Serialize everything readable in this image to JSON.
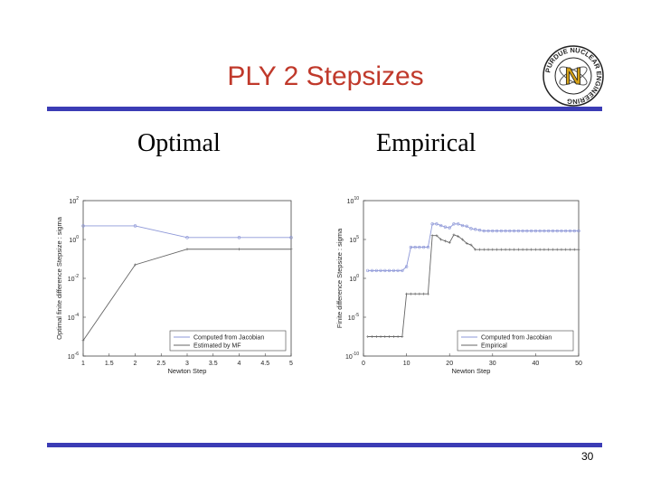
{
  "slide": {
    "title": "PLY 2 Stepsizes",
    "subtitle_left": "Optimal",
    "subtitle_right": "Empirical",
    "page_number": "30",
    "logo_text": "PURDUE NUCLEAR ENGINEERING",
    "logo_letter": "N",
    "colors": {
      "title": "#c0392b",
      "rule": "#3b3cb5",
      "series_blue": "#8e98d8",
      "series_gray": "#666666"
    }
  },
  "chart_data": [
    {
      "type": "line",
      "title": "",
      "xlabel": "Newton Step",
      "ylabel": "Optimal finite difference Stepsize : sigma",
      "xlim": [
        1,
        5
      ],
      "ylim_log10": [
        -6,
        2
      ],
      "yscale": "log",
      "x_ticks": [
        "1",
        "1.5",
        "2",
        "2.5",
        "3",
        "3.5",
        "4",
        "4.5",
        "5"
      ],
      "y_ticks": [
        {
          "base": "10",
          "exp": "2"
        },
        {
          "base": "10",
          "exp": "0"
        },
        {
          "base": "10",
          "exp": "-2"
        },
        {
          "base": "10",
          "exp": "-4"
        },
        {
          "base": "10",
          "exp": "-6"
        }
      ],
      "legend_position": "bottom-right",
      "series": [
        {
          "name": "Computed from Jacobian",
          "color": "#8e98d8",
          "x": [
            1,
            2,
            3,
            4,
            5
          ],
          "y_log10": [
            0.7,
            0.7,
            0.1,
            0.1,
            0.1
          ]
        },
        {
          "name": "Estimated by MF",
          "color": "#666666",
          "x": [
            1,
            2,
            3,
            4,
            5
          ],
          "y_log10": [
            -5.2,
            -1.3,
            -0.5,
            -0.5,
            -0.5
          ]
        }
      ]
    },
    {
      "type": "line",
      "title": "",
      "xlabel": "Newton Step",
      "ylabel": "Finite difference Stepsize : sigma",
      "xlim": [
        0,
        50
      ],
      "ylim_log10": [
        -10,
        10
      ],
      "yscale": "log",
      "x_ticks": [
        "0",
        "10",
        "20",
        "30",
        "40",
        "50"
      ],
      "y_ticks": [
        {
          "base": "10",
          "exp": "10"
        },
        {
          "base": "10",
          "exp": "5"
        },
        {
          "base": "10",
          "exp": "0"
        },
        {
          "base": "10",
          "exp": "-5"
        },
        {
          "base": "10",
          "exp": "-10"
        }
      ],
      "legend_position": "bottom-right",
      "series": [
        {
          "name": "Computed from Jacobian",
          "color": "#8e98d8",
          "x": [
            1,
            2,
            3,
            4,
            5,
            6,
            7,
            8,
            9,
            10,
            11,
            12,
            13,
            14,
            15,
            16,
            17,
            18,
            19,
            20,
            21,
            22,
            23,
            24,
            25,
            26,
            27,
            28,
            29,
            30,
            31,
            32,
            33,
            34,
            35,
            36,
            37,
            38,
            39,
            40,
            41,
            42,
            43,
            44,
            45,
            46,
            47,
            48,
            49,
            50
          ],
          "y_log10": [
            1.0,
            1.0,
            1.0,
            1.0,
            1.0,
            1.0,
            1.0,
            1.0,
            1.0,
            1.5,
            4.0,
            4.0,
            4.0,
            4.0,
            4.0,
            7.0,
            7.0,
            6.8,
            6.6,
            6.5,
            7.0,
            7.0,
            6.8,
            6.7,
            6.4,
            6.3,
            6.2,
            6.1,
            6.1,
            6.1,
            6.1,
            6.1,
            6.1,
            6.1,
            6.1,
            6.1,
            6.1,
            6.1,
            6.1,
            6.1,
            6.1,
            6.1,
            6.1,
            6.1,
            6.1,
            6.1,
            6.1,
            6.1,
            6.1,
            6.1
          ]
        },
        {
          "name": "Empirical",
          "color": "#666666",
          "x": [
            1,
            2,
            3,
            4,
            5,
            6,
            7,
            8,
            9,
            10,
            11,
            12,
            13,
            14,
            15,
            16,
            17,
            18,
            19,
            20,
            21,
            22,
            23,
            24,
            25,
            26,
            27,
            28,
            29,
            30,
            31,
            32,
            33,
            34,
            35,
            36,
            37,
            38,
            39,
            40,
            41,
            42,
            43,
            44,
            45,
            46,
            47,
            48,
            49,
            50
          ],
          "y_log10": [
            -7.5,
            -7.5,
            -7.5,
            -7.5,
            -7.5,
            -7.5,
            -7.5,
            -7.5,
            -7.5,
            -2.0,
            -2.0,
            -2.0,
            -2.0,
            -2.0,
            -2.0,
            5.5,
            5.5,
            5.0,
            4.8,
            4.6,
            5.6,
            5.4,
            5.0,
            4.5,
            4.3,
            3.7,
            3.7,
            3.7,
            3.7,
            3.7,
            3.7,
            3.7,
            3.7,
            3.7,
            3.7,
            3.7,
            3.7,
            3.7,
            3.7,
            3.7,
            3.7,
            3.7,
            3.7,
            3.7,
            3.7,
            3.7,
            3.7,
            3.7,
            3.7,
            3.7
          ]
        }
      ]
    }
  ]
}
